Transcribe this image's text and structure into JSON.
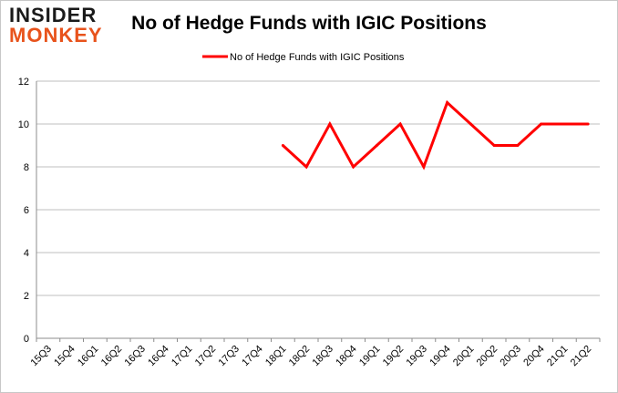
{
  "logo": {
    "line1": "INSIDER",
    "line2": "MONKEY"
  },
  "chart_data": {
    "type": "line",
    "title": "No of Hedge Funds with IGIC Positions",
    "xlabel": "",
    "ylabel": "",
    "categories": [
      "15Q3",
      "15Q4",
      "16Q1",
      "16Q2",
      "16Q3",
      "16Q4",
      "17Q1",
      "17Q2",
      "17Q3",
      "17Q4",
      "18Q1",
      "18Q2",
      "18Q3",
      "18Q4",
      "19Q1",
      "19Q2",
      "19Q3",
      "19Q4",
      "20Q1",
      "20Q2",
      "20Q3",
      "20Q4",
      "21Q1",
      "21Q2"
    ],
    "series": [
      {
        "name": "No of Hedge Funds with IGIC Positions",
        "color": "#ff0000",
        "values": [
          null,
          null,
          null,
          null,
          null,
          null,
          null,
          null,
          null,
          null,
          9,
          8,
          10,
          8,
          9,
          10,
          8,
          11,
          10,
          9,
          9,
          10,
          10,
          10
        ]
      }
    ],
    "ylim": [
      0,
      12
    ],
    "yticks": [
      0,
      2,
      4,
      6,
      8,
      10,
      12
    ],
    "grid": true,
    "legend": "top-center"
  }
}
